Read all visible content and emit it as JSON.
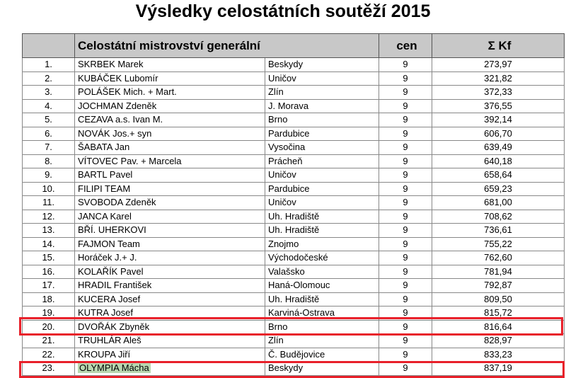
{
  "title": "Výsledky celostátních soutěží 2015",
  "header": {
    "rank": "",
    "name": "Celostátní mistrovství generální",
    "region": "",
    "cen": "cen",
    "kf": "Σ Kf"
  },
  "highlight_color": "#e8202a",
  "rows": [
    {
      "rank": "1.",
      "name": "SKRBEK Marek",
      "region": "Beskydy",
      "cen": "9",
      "kf": "273,97"
    },
    {
      "rank": "2.",
      "name": "KUBÁČEK Lubomír",
      "region": "Uničov",
      "cen": "9",
      "kf": "321,82"
    },
    {
      "rank": "3.",
      "name": "POLÁŠEK Mich. + Mart.",
      "region": "Zlín",
      "cen": "9",
      "kf": "372,33"
    },
    {
      "rank": "4.",
      "name": "JOCHMAN Zdeněk",
      "region": "J. Morava",
      "cen": "9",
      "kf": "376,55"
    },
    {
      "rank": "5.",
      "name": "CEZAVA a.s. Ivan M.",
      "region": "Brno",
      "cen": "9",
      "kf": "392,14"
    },
    {
      "rank": "6.",
      "name": "NOVÁK Jos.+ syn",
      "region": "Pardubice",
      "cen": "9",
      "kf": "606,70"
    },
    {
      "rank": "7.",
      "name": "ŠABATA Jan",
      "region": "Vysočina",
      "cen": "9",
      "kf": "639,49"
    },
    {
      "rank": "8.",
      "name": "VÍTOVEC Pav. + Marcela",
      "region": "Prácheň",
      "cen": "9",
      "kf": "640,18"
    },
    {
      "rank": "9.",
      "name": "BARTL Pavel",
      "region": "Uničov",
      "cen": "9",
      "kf": "658,64"
    },
    {
      "rank": "10.",
      "name": "FILIPI TEAM",
      "region": "Pardubice",
      "cen": "9",
      "kf": "659,23"
    },
    {
      "rank": "11.",
      "name": "SVOBODA Zdeněk",
      "region": "Uničov",
      "cen": "9",
      "kf": "681,00"
    },
    {
      "rank": "12.",
      "name": "JANCA Karel",
      "region": "Uh. Hradiště",
      "cen": "9",
      "kf": "708,62"
    },
    {
      "rank": "13.",
      "name": "BŘÍ. UHERKOVI",
      "region": "Uh. Hradiště",
      "cen": "9",
      "kf": "736,61"
    },
    {
      "rank": "14.",
      "name": "FAJMON Team",
      "region": "Znojmo",
      "cen": "9",
      "kf": "755,22"
    },
    {
      "rank": "15.",
      "name": "Horáček J.+ J.",
      "region": "Východočeské",
      "cen": "9",
      "kf": "762,60"
    },
    {
      "rank": "16.",
      "name": "KOLAŘÍK Pavel",
      "region": "Valašsko",
      "cen": "9",
      "kf": "781,94"
    },
    {
      "rank": "17.",
      "name": "HRADIL František",
      "region": "Haná-Olomouc",
      "cen": "9",
      "kf": "792,87"
    },
    {
      "rank": "18.",
      "name": "KUCERA Josef",
      "region": "Uh. Hradiště",
      "cen": "9",
      "kf": "809,50"
    },
    {
      "rank": "19.",
      "name": "KUTRA Josef",
      "region": "Karviná-Ostrava",
      "cen": "9",
      "kf": "815,72"
    },
    {
      "rank": "20.",
      "name": "DVOŘÁK Zbyněk",
      "region": "Brno",
      "cen": "9",
      "kf": "816,64",
      "boxed": true
    },
    {
      "rank": "21.",
      "name": "TRUHLÁR Aleš",
      "region": "Zlín",
      "cen": "9",
      "kf": "828,97"
    },
    {
      "rank": "22.",
      "name": "KROUPA Jiří",
      "region": "Č. Budějovice",
      "cen": "9",
      "kf": "833,23"
    },
    {
      "rank": "23.",
      "name": "OLYMPIA Mácha",
      "region": "Beskydy",
      "cen": "9",
      "kf": "837,19",
      "boxed": true,
      "name_highlight": "#b9d7b0"
    }
  ]
}
